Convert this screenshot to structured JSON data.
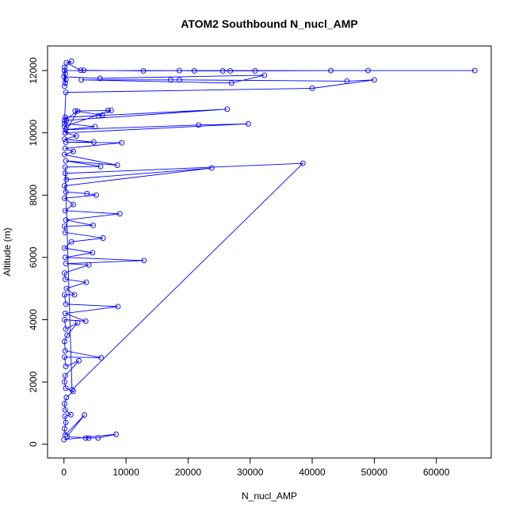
{
  "chart_data": {
    "type": "line",
    "title": "ATOM2 Southbound N_nucl_AMP",
    "x_label": "N_nucl_AMP",
    "y_label": "Altitude (m)",
    "color": "#0000ff",
    "x": [
      0,
      8400,
      5500,
      4000,
      3500,
      500,
      3300,
      200,
      100,
      300,
      150,
      1100,
      200,
      100,
      400,
      1500,
      300,
      100,
      200,
      2400,
      300,
      100,
      6000,
      200,
      100,
      500,
      2200,
      300,
      100,
      3500,
      200,
      8700,
      300,
      100,
      1700,
      400,
      3600,
      200,
      100,
      4000,
      300,
      12900,
      200,
      4600,
      100,
      1200,
      6300,
      200,
      100,
      4700,
      300,
      9000,
      200,
      1500,
      100,
      5200,
      3700,
      300,
      100,
      23800,
      400,
      200,
      38500,
      1300,
      200,
      5900,
      300,
      8600,
      100,
      1500,
      200,
      9300,
      300,
      4800,
      100,
      2000,
      200,
      29700,
      21700,
      300,
      5000,
      100,
      400,
      26300,
      200,
      5500,
      6200,
      1800,
      7100,
      7600,
      100,
      200,
      2200,
      100,
      300,
      40000,
      50000,
      45600,
      18600,
      17200,
      2800,
      27000,
      32300,
      5800,
      0,
      200,
      100,
      66200,
      49000,
      43000,
      30800,
      26800,
      25600,
      21000,
      18600,
      12800,
      3200,
      2700,
      400,
      1200,
      100,
      200,
      300,
      100
    ],
    "values": [
      150,
      320,
      200,
      200,
      200,
      250,
      940,
      300,
      500,
      700,
      900,
      950,
      1100,
      1300,
      1500,
      1700,
      1800,
      2000,
      2200,
      2680,
      2500,
      2800,
      2780,
      3000,
      3300,
      3500,
      3900,
      3700,
      4000,
      3950,
      4200,
      4420,
      4500,
      4800,
      4800,
      5000,
      5200,
      5300,
      5500,
      5760,
      5800,
      5900,
      6000,
      6150,
      6300,
      6500,
      6620,
      6800,
      7000,
      7030,
      7200,
      7400,
      7500,
      7700,
      7900,
      8000,
      8050,
      8100,
      8300,
      8870,
      8500,
      8700,
      9020,
      1750,
      8900,
      8920,
      9100,
      8960,
      9300,
      9400,
      9500,
      9680,
      9700,
      9700,
      9800,
      9900,
      10000,
      10290,
      10250,
      10100,
      10200,
      10300,
      10400,
      10760,
      10500,
      10550,
      10570,
      10700,
      10720,
      10720,
      10200,
      10000,
      10700,
      10400,
      11300,
      11430,
      11700,
      11660,
      11700,
      11700,
      11700,
      11600,
      11850,
      11750,
      11800,
      11600,
      12000,
      12000,
      12000,
      12000,
      11990,
      11990,
      11990,
      11990,
      12000,
      11990,
      12010,
      12010,
      12250,
      12300,
      12100,
      11900,
      11700,
      11500
    ],
    "xlim": [
      -2648,
      68848
    ],
    "ylim": [
      -440,
      12790
    ],
    "xticks": [
      0,
      10000,
      20000,
      30000,
      40000,
      50000,
      60000
    ],
    "yticks": [
      0,
      2000,
      4000,
      6000,
      8000,
      10000,
      12000
    ]
  }
}
